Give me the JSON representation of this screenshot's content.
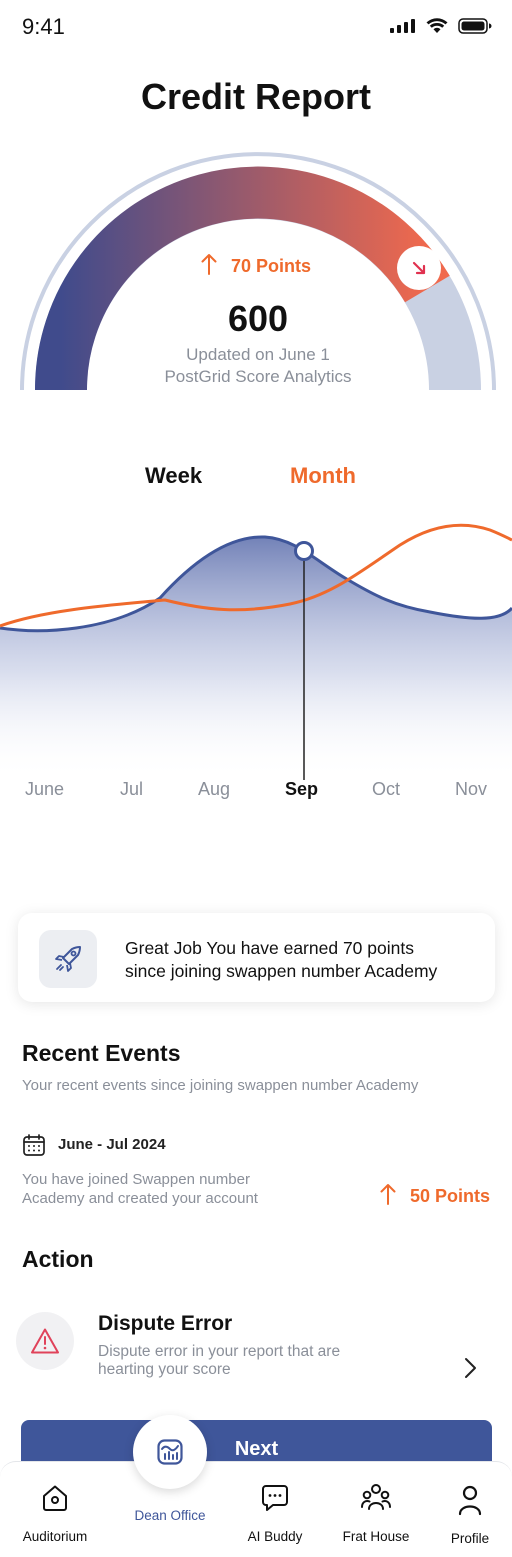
{
  "status_bar": {
    "time": "9:41"
  },
  "header": {
    "title": "Credit Report"
  },
  "gauge": {
    "points_label": "70 Points",
    "score": "600",
    "updated": "Updated on June 1",
    "source": "PostGrid Score Analytics",
    "colors": {
      "start": "#404b8c",
      "end": "#f0694d",
      "track": "#c9d1e3"
    }
  },
  "tabs": {
    "week": "Week",
    "month": "Month",
    "active": "Month"
  },
  "chart_data": {
    "type": "line",
    "categories": [
      "June",
      "Jul",
      "Aug",
      "Sep",
      "Oct",
      "Nov"
    ],
    "selected": "Sep",
    "series": [
      {
        "color": "#3f569a",
        "fill": "area"
      },
      {
        "color": "#ef6a2c"
      }
    ]
  },
  "achievement": {
    "text_line1": "Great Job You have earned 70 points",
    "text_line2": "since joining swappen number Academy",
    "icon": "rocket-icon"
  },
  "recent_events": {
    "title": "Recent Events",
    "subtitle": "Your recent events since joining swappen number Academy",
    "items": [
      {
        "date": "June - Jul 2024",
        "desc_line1": "You have joined Swappen number",
        "desc_line2": "Academy and created your account",
        "points": "50 Points"
      }
    ]
  },
  "action": {
    "title": "Action",
    "item": {
      "title": "Dispute Error",
      "desc_line1": "Dispute error in your report that are",
      "desc_line2": "hearting your score",
      "icon": "warning-icon"
    }
  },
  "next_button": {
    "label": "Next"
  },
  "bottom_nav": {
    "items": [
      {
        "label": "Auditorium",
        "icon": "home-icon"
      },
      {
        "label": "Dean Office",
        "icon": "dashboard-icon",
        "active": true
      },
      {
        "label": "AI Buddy",
        "icon": "chat-icon"
      },
      {
        "label": "Frat House",
        "icon": "group-icon"
      },
      {
        "label": "Profile",
        "icon": "user-icon"
      }
    ],
    "active_color": "#3f569a"
  }
}
